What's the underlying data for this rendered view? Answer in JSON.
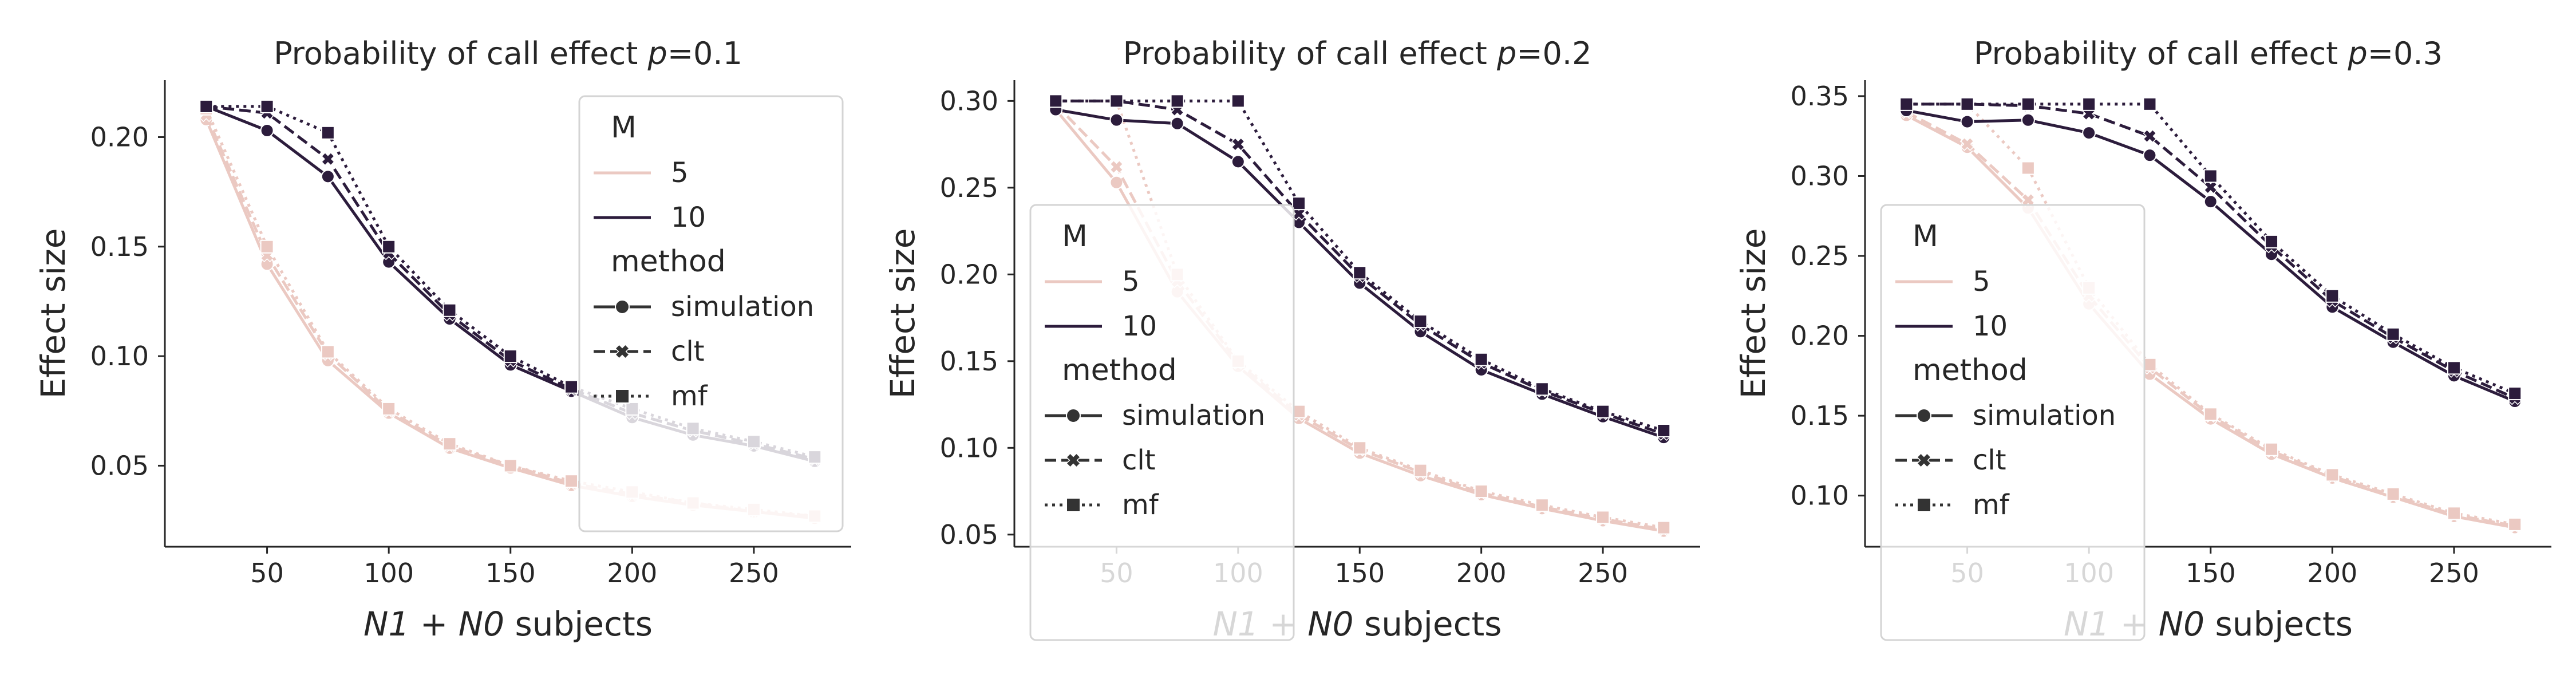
{
  "colors": {
    "light": "#ebc9c2",
    "dark": "#2c1c3c",
    "axis": "#262626",
    "legend_border": "#d4d4d4"
  },
  "chart_data": [
    {
      "type": "line",
      "title_prefix": "Probability of call effect ",
      "title_var": "p",
      "title_suffix": "=0.1",
      "xlabel_math": "N1 + N0",
      "xlabel_text": "subjects",
      "ylabel": "Effect size",
      "xlim": [
        8,
        290
      ],
      "ylim": [
        0.013,
        0.226
      ],
      "xticks": [
        50,
        100,
        150,
        200,
        250
      ],
      "yticks": [
        0.05,
        0.1,
        0.15,
        0.2
      ],
      "ytick_labels": [
        "0.05",
        "0.10",
        "0.15",
        "0.20"
      ],
      "x": [
        25,
        50,
        75,
        100,
        125,
        150,
        175,
        200,
        225,
        250,
        275
      ],
      "legend": {
        "position": "upper-right",
        "hue_title": "M",
        "hue_items": [
          "5",
          "10"
        ],
        "style_title": "method",
        "style_items": [
          "simulation",
          "clt",
          "mf"
        ]
      },
      "series": [
        {
          "name": "M=5 simulation",
          "M": "5",
          "method": "simulation",
          "values": [
            0.208,
            0.142,
            0.098,
            0.074,
            0.058,
            0.049,
            0.041,
            0.036,
            0.032,
            0.029,
            0.026
          ]
        },
        {
          "name": "M=5 clt",
          "M": "5",
          "method": "clt",
          "values": [
            0.21,
            0.146,
            0.101,
            0.075,
            0.059,
            0.05,
            0.042,
            0.037,
            0.033,
            0.029,
            0.027
          ]
        },
        {
          "name": "M=5 mf",
          "M": "5",
          "method": "mf",
          "values": [
            0.213,
            0.15,
            0.102,
            0.076,
            0.06,
            0.05,
            0.043,
            0.038,
            0.033,
            0.03,
            0.027
          ]
        },
        {
          "name": "M=10 simulation",
          "M": "10",
          "method": "simulation",
          "values": [
            0.214,
            0.203,
            0.182,
            0.143,
            0.117,
            0.096,
            0.084,
            0.072,
            0.064,
            0.059,
            0.052
          ]
        },
        {
          "name": "M=10 clt",
          "M": "10",
          "method": "clt",
          "values": [
            0.214,
            0.211,
            0.19,
            0.147,
            0.119,
            0.098,
            0.085,
            0.074,
            0.066,
            0.06,
            0.053
          ]
        },
        {
          "name": "M=10 mf",
          "M": "10",
          "method": "mf",
          "values": [
            0.214,
            0.214,
            0.202,
            0.15,
            0.121,
            0.1,
            0.086,
            0.076,
            0.067,
            0.061,
            0.054
          ]
        }
      ]
    },
    {
      "type": "line",
      "title_prefix": "Probability of call effect ",
      "title_var": "p",
      "title_suffix": "=0.2",
      "xlabel_math": "N1 + N0",
      "xlabel_text": "subjects",
      "ylabel": "Effect size",
      "xlim": [
        8,
        290
      ],
      "ylim": [
        0.043,
        0.312
      ],
      "xticks": [
        50,
        100,
        150,
        200,
        250
      ],
      "yticks": [
        0.05,
        0.1,
        0.15,
        0.2,
        0.25,
        0.3
      ],
      "ytick_labels": [
        "0.05",
        "0.10",
        "0.15",
        "0.20",
        "0.25",
        "0.30"
      ],
      "x": [
        25,
        50,
        75,
        100,
        125,
        150,
        175,
        200,
        225,
        250,
        275
      ],
      "legend": {
        "position": "lower-left",
        "hue_title": "M",
        "hue_items": [
          "5",
          "10"
        ],
        "style_title": "method",
        "style_items": [
          "simulation",
          "clt",
          "mf"
        ]
      },
      "series": [
        {
          "name": "M=5 simulation",
          "M": "5",
          "method": "simulation",
          "values": [
            0.295,
            0.253,
            0.19,
            0.147,
            0.117,
            0.097,
            0.084,
            0.073,
            0.065,
            0.058,
            0.052
          ]
        },
        {
          "name": "M=5 clt",
          "M": "5",
          "method": "clt",
          "values": [
            0.298,
            0.262,
            0.196,
            0.149,
            0.119,
            0.099,
            0.086,
            0.074,
            0.066,
            0.059,
            0.053
          ]
        },
        {
          "name": "M=5 mf",
          "M": "5",
          "method": "mf",
          "values": [
            0.3,
            0.3,
            0.2,
            0.15,
            0.121,
            0.1,
            0.087,
            0.075,
            0.067,
            0.06,
            0.054
          ]
        },
        {
          "name": "M=10 simulation",
          "M": "10",
          "method": "simulation",
          "values": [
            0.295,
            0.289,
            0.287,
            0.265,
            0.23,
            0.195,
            0.167,
            0.145,
            0.131,
            0.118,
            0.106
          ]
        },
        {
          "name": "M=10 clt",
          "M": "10",
          "method": "clt",
          "values": [
            0.3,
            0.3,
            0.295,
            0.275,
            0.235,
            0.199,
            0.171,
            0.149,
            0.133,
            0.12,
            0.108
          ]
        },
        {
          "name": "M=10 mf",
          "M": "10",
          "method": "mf",
          "values": [
            0.3,
            0.3,
            0.3,
            0.3,
            0.241,
            0.201,
            0.173,
            0.151,
            0.134,
            0.121,
            0.11
          ]
        }
      ]
    },
    {
      "type": "line",
      "title_prefix": "Probability of call effect ",
      "title_var": "p",
      "title_suffix": "=0.3",
      "xlabel_math": "N1 + N0",
      "xlabel_text": "subjects",
      "ylabel": "Effect size",
      "xlim": [
        8,
        290
      ],
      "ylim": [
        0.068,
        0.36
      ],
      "xticks": [
        50,
        100,
        150,
        200,
        250
      ],
      "yticks": [
        0.1,
        0.15,
        0.2,
        0.25,
        0.3,
        0.35
      ],
      "ytick_labels": [
        "0.10",
        "0.15",
        "0.20",
        "0.25",
        "0.30",
        "0.35"
      ],
      "x": [
        25,
        50,
        75,
        100,
        125,
        150,
        175,
        200,
        225,
        250,
        275
      ],
      "legend": {
        "position": "lower-left",
        "hue_title": "M",
        "hue_items": [
          "5",
          "10"
        ],
        "style_title": "method",
        "style_items": [
          "simulation",
          "clt",
          "mf"
        ]
      },
      "series": [
        {
          "name": "M=5 simulation",
          "M": "5",
          "method": "simulation",
          "values": [
            0.338,
            0.318,
            0.28,
            0.22,
            0.176,
            0.148,
            0.126,
            0.111,
            0.099,
            0.087,
            0.08
          ]
        },
        {
          "name": "M=5 clt",
          "M": "5",
          "method": "clt",
          "values": [
            0.34,
            0.32,
            0.285,
            0.225,
            0.18,
            0.15,
            0.128,
            0.112,
            0.1,
            0.088,
            0.081
          ]
        },
        {
          "name": "M=5 mf",
          "M": "5",
          "method": "mf",
          "values": [
            0.345,
            0.345,
            0.305,
            0.23,
            0.182,
            0.151,
            0.129,
            0.113,
            0.101,
            0.089,
            0.082
          ]
        },
        {
          "name": "M=10 simulation",
          "M": "10",
          "method": "simulation",
          "values": [
            0.341,
            0.334,
            0.335,
            0.327,
            0.313,
            0.284,
            0.251,
            0.218,
            0.196,
            0.175,
            0.159
          ]
        },
        {
          "name": "M=10 clt",
          "M": "10",
          "method": "clt",
          "values": [
            0.345,
            0.345,
            0.344,
            0.339,
            0.325,
            0.293,
            0.256,
            0.222,
            0.199,
            0.178,
            0.161
          ]
        },
        {
          "name": "M=10 mf",
          "M": "10",
          "method": "mf",
          "values": [
            0.345,
            0.345,
            0.345,
            0.345,
            0.345,
            0.3,
            0.259,
            0.225,
            0.201,
            0.18,
            0.164
          ]
        }
      ]
    }
  ]
}
